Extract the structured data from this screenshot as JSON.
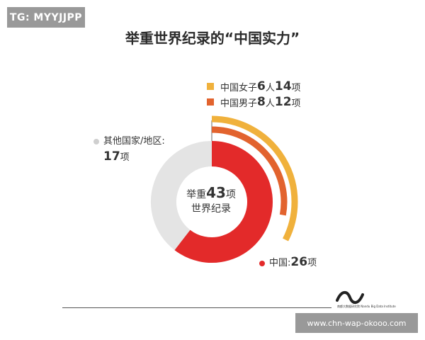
{
  "watermark_top": "TG: MYYJJPP",
  "watermark_bottom": "www.chn-wap-okooo.com",
  "logo_text": "南都大数据研究院 Nandu Big Data Institute",
  "chart_data": {
    "type": "pie",
    "title": "举重世界纪录的“中国实力”",
    "center_label": {
      "prefix": "举重",
      "number": "43",
      "suffix": "项",
      "line2": "世界纪录"
    },
    "slices": [
      {
        "name": "中国",
        "label": "中国:",
        "value": 26,
        "unit": "项",
        "color": "#e32a2a"
      },
      {
        "name": "其他国家/地区",
        "label": "其他国家/地区:",
        "value": 17,
        "unit": "项",
        "color": "#e4e4e4"
      }
    ],
    "total": 43,
    "breakdown_of": "中国",
    "breakdown": [
      {
        "name": "中国女子",
        "people": 6,
        "people_unit": "人",
        "records": 14,
        "unit": "项",
        "color": "#f0b13c"
      },
      {
        "name": "中国男子",
        "people": 8,
        "people_unit": "人",
        "records": 12,
        "unit": "项",
        "color": "#e2632e"
      }
    ]
  }
}
